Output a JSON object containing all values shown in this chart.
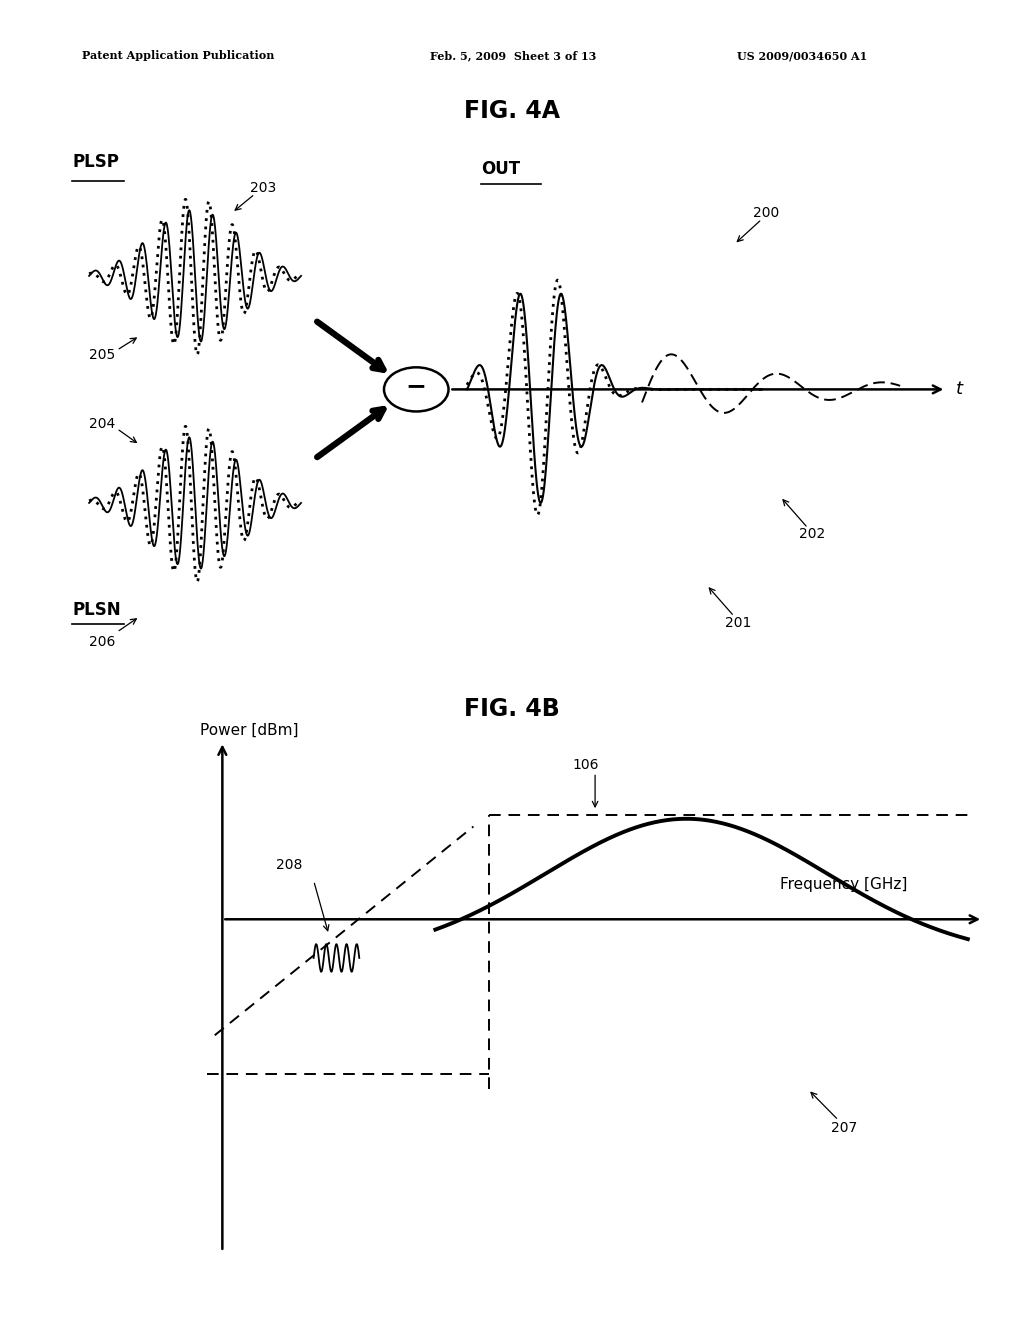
{
  "bg_color": "#ffffff",
  "header_left": "Patent Application Publication",
  "header_mid": "Feb. 5, 2009  Sheet 3 of 13",
  "header_right": "US 2009/0034650 A1",
  "fig4a_title": "FIG. 4A",
  "fig4b_title": "FIG. 4B",
  "labels": {
    "PLSP": "PLSP",
    "PLSN": "PLSN",
    "OUT": "OUT",
    "t": "t",
    "num203": "203",
    "num204": "204",
    "num205": "205",
    "num206": "206",
    "num200": "200",
    "num201": "201",
    "num202": "202",
    "num106": "106",
    "num207": "207",
    "num208": "208",
    "power_label": "Power [dBm]",
    "freq_label": "Frequency [GHz]"
  }
}
